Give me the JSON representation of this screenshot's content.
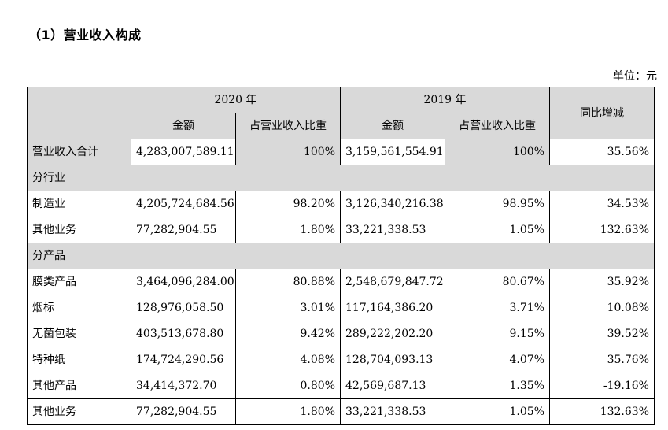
{
  "heading": "（1）营业收入构成",
  "unit": "单位：元",
  "header": {
    "year_2020": "2020 年",
    "year_2019": "2019 年",
    "amount": "金额",
    "ratio": "占营业收入比重",
    "yoy": "同比增减"
  },
  "rows": {
    "total": {
      "label": "营业收入合计",
      "amount_2020": "4,283,007,589.11",
      "ratio_2020": "100%",
      "amount_2019": "3,159,561,554.91",
      "ratio_2019": "100%",
      "yoy": "35.56%"
    },
    "section_industry": "分行业",
    "manufacturing": {
      "label": "制造业",
      "amount_2020": "4,205,724,684.56",
      "ratio_2020": "98.20%",
      "amount_2019": "3,126,340,216.38",
      "ratio_2019": "98.95%",
      "yoy": "34.53%"
    },
    "other_business_1": {
      "label": "其他业务",
      "amount_2020": "77,282,904.55",
      "ratio_2020": "1.80%",
      "amount_2019": "33,221,338.53",
      "ratio_2019": "1.05%",
      "yoy": "132.63%"
    },
    "section_product": "分产品",
    "film": {
      "label": "膜类产品",
      "amount_2020": "3,464,096,284.00",
      "ratio_2020": "80.88%",
      "amount_2019": "2,548,679,847.72",
      "ratio_2019": "80.67%",
      "yoy": "35.92%"
    },
    "cigarette_label": {
      "label": "烟标",
      "amount_2020": "128,976,058.50",
      "ratio_2020": "3.01%",
      "amount_2019": "117,164,386.20",
      "ratio_2019": "3.71%",
      "yoy": "10.08%"
    },
    "aseptic": {
      "label": "无菌包装",
      "amount_2020": "403,513,678.80",
      "ratio_2020": "9.42%",
      "amount_2019": "289,222,202.20",
      "ratio_2019": "9.15%",
      "yoy": "39.52%"
    },
    "specialty_paper": {
      "label": "特种纸",
      "amount_2020": "174,724,290.56",
      "ratio_2020": "4.08%",
      "amount_2019": "128,704,093.13",
      "ratio_2019": "4.07%",
      "yoy": "35.76%"
    },
    "other_products": {
      "label": "其他产品",
      "amount_2020": "34,414,372.70",
      "ratio_2020": "0.80%",
      "amount_2019": "42,569,687.13",
      "ratio_2019": "1.35%",
      "yoy": "-19.16%"
    },
    "other_business_2": {
      "label": "其他业务",
      "amount_2020": "77,282,904.55",
      "ratio_2020": "1.80%",
      "amount_2019": "33,221,338.53",
      "ratio_2019": "1.05%",
      "yoy": "132.63%"
    }
  },
  "colors": {
    "header_bg": "#d9d9d9",
    "border": "#000000"
  }
}
